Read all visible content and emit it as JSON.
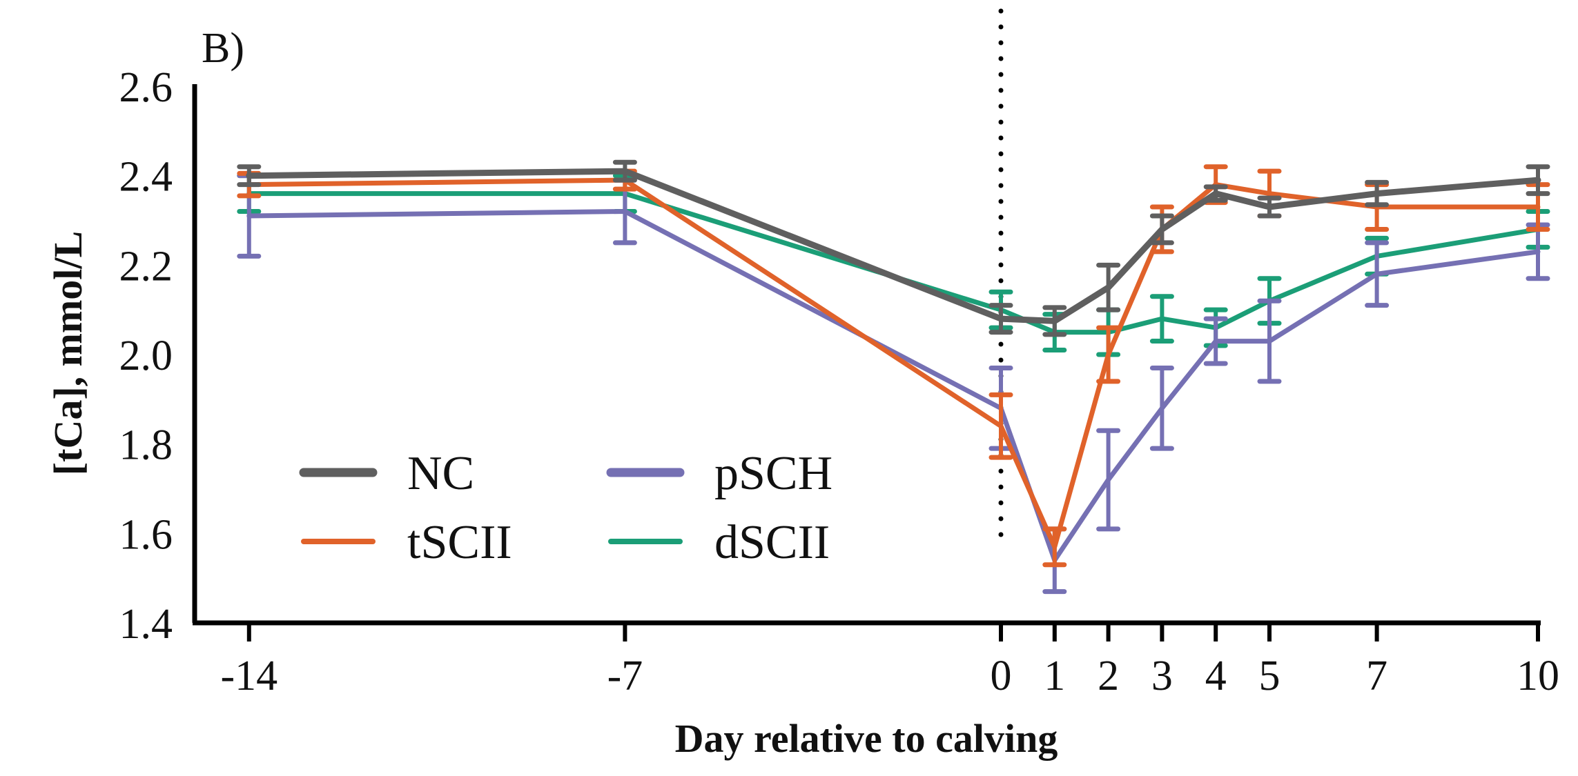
{
  "chart_data": {
    "type": "line",
    "panel_label": "B)",
    "title": "",
    "xlabel": "Day relative to calving",
    "ylabel": "[tCa], mmol/L",
    "x": [
      -14,
      -7,
      0,
      1,
      2,
      3,
      4,
      5,
      7,
      10
    ],
    "x_tick_labels": [
      "-14",
      "-7",
      "0",
      "1",
      "2",
      "3",
      "4",
      "5",
      "7",
      "10"
    ],
    "xlim": [
      -14,
      10
    ],
    "ylim": [
      1.4,
      2.6
    ],
    "y_ticks": [
      1.4,
      1.6,
      1.8,
      2.0,
      2.2,
      2.4,
      2.6
    ],
    "y_tick_labels": [
      "1.4",
      "1.6",
      "1.8",
      "2.0",
      "2.2",
      "2.4",
      "2.6"
    ],
    "grid": false,
    "legend_position": "bottom-left",
    "reference_line": {
      "x": 0,
      "style": "dotted",
      "color": "#000000"
    },
    "series": [
      {
        "name": "NC",
        "color": "#5f5f5f",
        "values": [
          2.4,
          2.41,
          2.08,
          2.075,
          2.15,
          2.28,
          2.36,
          2.33,
          2.36,
          2.39
        ],
        "errors": [
          0.02,
          0.02,
          0.03,
          0.03,
          0.05,
          0.03,
          0.015,
          0.02,
          0.025,
          0.03
        ]
      },
      {
        "name": "tSCII",
        "color": "#e0622a",
        "values": [
          2.38,
          2.39,
          1.84,
          1.57,
          2.0,
          2.28,
          2.38,
          2.36,
          2.33,
          2.33
        ],
        "errors": [
          0.025,
          0.02,
          0.07,
          0.04,
          0.06,
          0.05,
          0.04,
          0.05,
          0.05,
          0.05
        ]
      },
      {
        "name": "pSCH",
        "color": "#7570b3",
        "values": [
          2.31,
          2.32,
          1.88,
          1.54,
          1.72,
          1.88,
          2.03,
          2.03,
          2.18,
          2.23
        ],
        "errors": [
          0.09,
          0.07,
          0.09,
          0.07,
          0.11,
          0.09,
          0.05,
          0.09,
          0.07,
          0.06
        ]
      },
      {
        "name": "dSCII",
        "color": "#1b9e77",
        "values": [
          2.36,
          2.36,
          2.1,
          2.05,
          2.05,
          2.08,
          2.06,
          2.12,
          2.22,
          2.28
        ],
        "errors": [
          0.04,
          0.04,
          0.04,
          0.04,
          0.05,
          0.05,
          0.04,
          0.05,
          0.04,
          0.04
        ]
      }
    ],
    "legend": {
      "entries": [
        "NC",
        "pSCH",
        "tSCII",
        "dSCII"
      ]
    }
  }
}
